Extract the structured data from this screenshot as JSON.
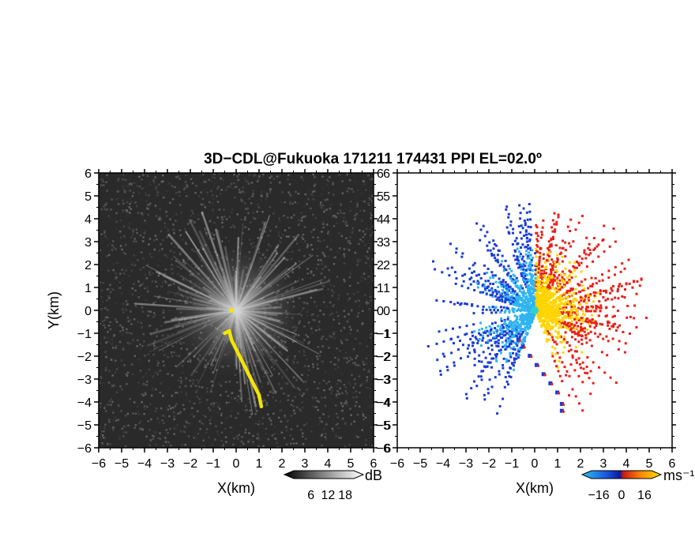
{
  "title": "3D−CDL@Fukuoka 171211 174431 PPI EL=02.0º",
  "chart_data": [
    {
      "type": "heatmap",
      "panel": "reflectivity",
      "xlabel": "X(km)",
      "ylabel": "Y(km)",
      "xlim": [
        -6,
        6
      ],
      "ylim": [
        -6,
        6
      ],
      "xticks": [
        "−6",
        "−5",
        "−4",
        "−3",
        "−2",
        "−1",
        "0",
        "1",
        "2",
        "3",
        "4",
        "5",
        "6"
      ],
      "yticks": [
        "−6",
        "−5",
        "−4",
        "−3",
        "−2",
        "−1",
        "0",
        "1",
        "2",
        "3",
        "4",
        "5",
        "6"
      ],
      "background_color": "#2a2a2a",
      "highlight_color": "#f2e600",
      "colorbar": {
        "unit": "dB",
        "ticks": [
          "6",
          "12",
          "18"
        ],
        "range": [
          0,
          21
        ]
      }
    },
    {
      "type": "heatmap",
      "panel": "doppler-velocity",
      "xlabel": "X(km)",
      "ylabel": "",
      "xlim": [
        -6,
        6
      ],
      "ylim": [
        -6,
        6
      ],
      "xticks": [
        "−6",
        "−5",
        "−4",
        "−3",
        "−2",
        "−1",
        "0",
        "1",
        "2",
        "3",
        "4",
        "5",
        "6"
      ],
      "yticks": [
        "−6",
        "−5",
        "−4",
        "−3",
        "−2",
        "−1",
        "0",
        "1",
        "2",
        "3",
        "4",
        "5",
        "6"
      ],
      "colorbar": {
        "unit": "ms⁻¹",
        "ticks": [
          "−16",
          "0",
          "16"
        ],
        "range": [
          -21,
          21
        ]
      },
      "colors": {
        "negative_far": "#1a3cd6",
        "negative_near": "#2fb4f0",
        "positive_near": "#ffd400",
        "positive_far": "#e8201a"
      }
    }
  ]
}
